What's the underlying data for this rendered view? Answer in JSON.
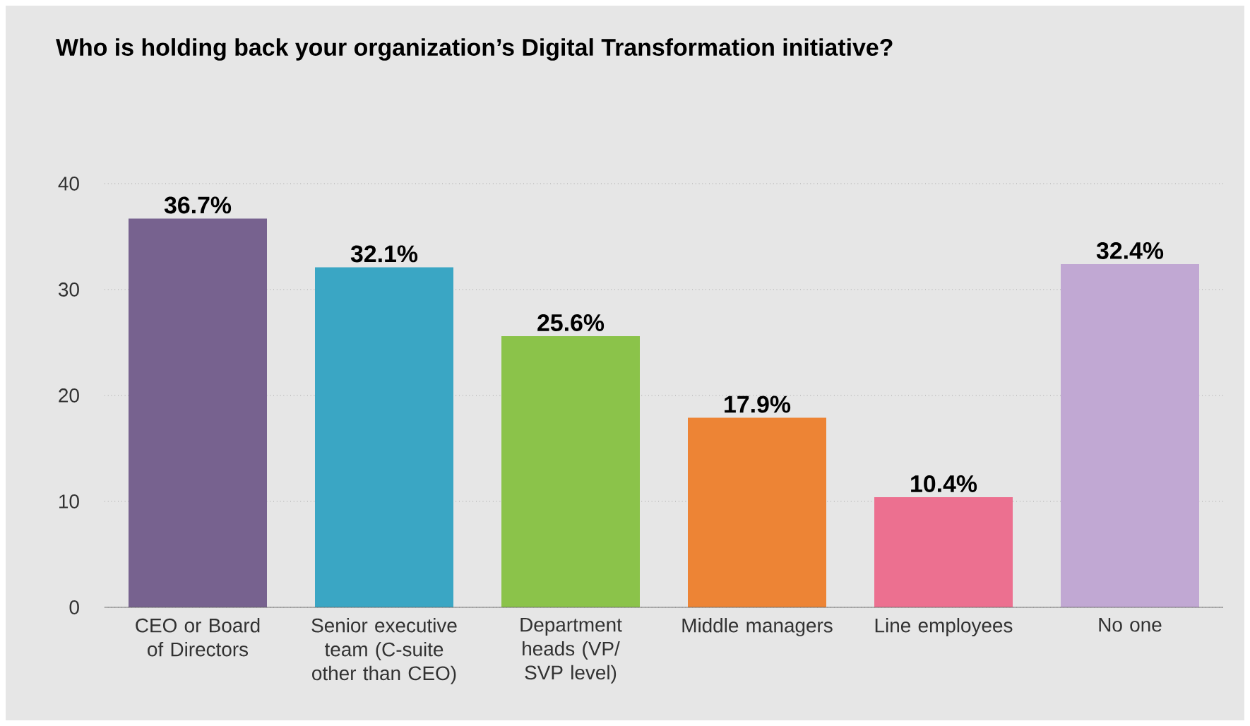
{
  "chart_data": {
    "type": "bar",
    "title": "Who is holding back your organization’s Digital Transformation initiative?",
    "categories": [
      "CEO or Board of Directors",
      "Senior executive team (C-suite other than CEO)",
      "Department heads (VP/ SVP level)",
      "Middle managers",
      "Line employees",
      "No one"
    ],
    "values": [
      36.7,
      32.1,
      25.6,
      17.9,
      10.4,
      32.4
    ],
    "value_labels": [
      "36.7%",
      "32.1%",
      "25.6%",
      "17.9%",
      "10.4%",
      "32.4%"
    ],
    "colors": [
      "#77628f",
      "#3aa6c4",
      "#8bc34a",
      "#ed8435",
      "#ec7090",
      "#c1a8d3"
    ],
    "ylim": [
      0,
      40
    ],
    "yticks": [
      0,
      10,
      20,
      30,
      40
    ],
    "grid": "y"
  }
}
